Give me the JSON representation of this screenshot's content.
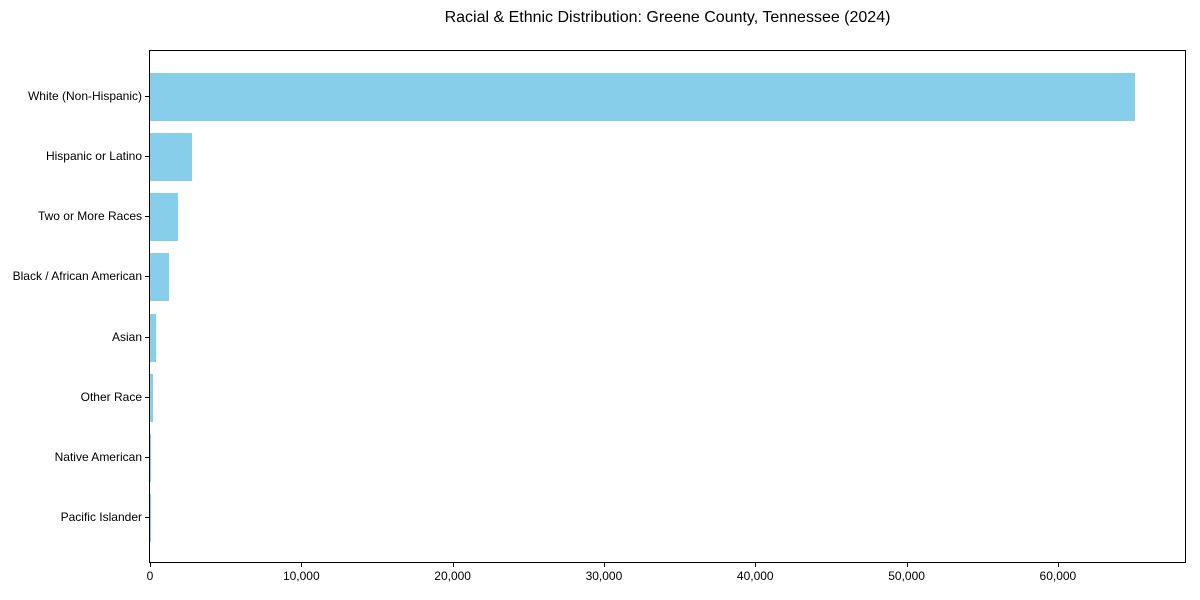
{
  "figure": {
    "title": "Racial & Ethnic Distribution: Greene County, Tennessee (2024)"
  },
  "chart_data": {
    "type": "bar",
    "orientation": "horizontal",
    "title": "Racial & Ethnic Distribution: Greene County, Tennessee (2024)",
    "xlabel": "",
    "ylabel": "",
    "categories": [
      "White (Non-Hispanic)",
      "Hispanic or Latino",
      "Two or More Races",
      "Black / African American",
      "Asian",
      "Other Race",
      "Native American",
      "Pacific Islander"
    ],
    "values": [
      65100,
      2750,
      1870,
      1230,
      390,
      190,
      40,
      15
    ],
    "xlim": [
      0,
      68400
    ],
    "xticks": {
      "values": [
        0,
        10000,
        20000,
        30000,
        40000,
        50000,
        60000
      ],
      "labels": [
        "0",
        "10,000",
        "20,000",
        "30,000",
        "40,000",
        "50,000",
        "60,000"
      ]
    },
    "bar_color": "#87CEEB",
    "grid": false,
    "legend_position": "none"
  }
}
